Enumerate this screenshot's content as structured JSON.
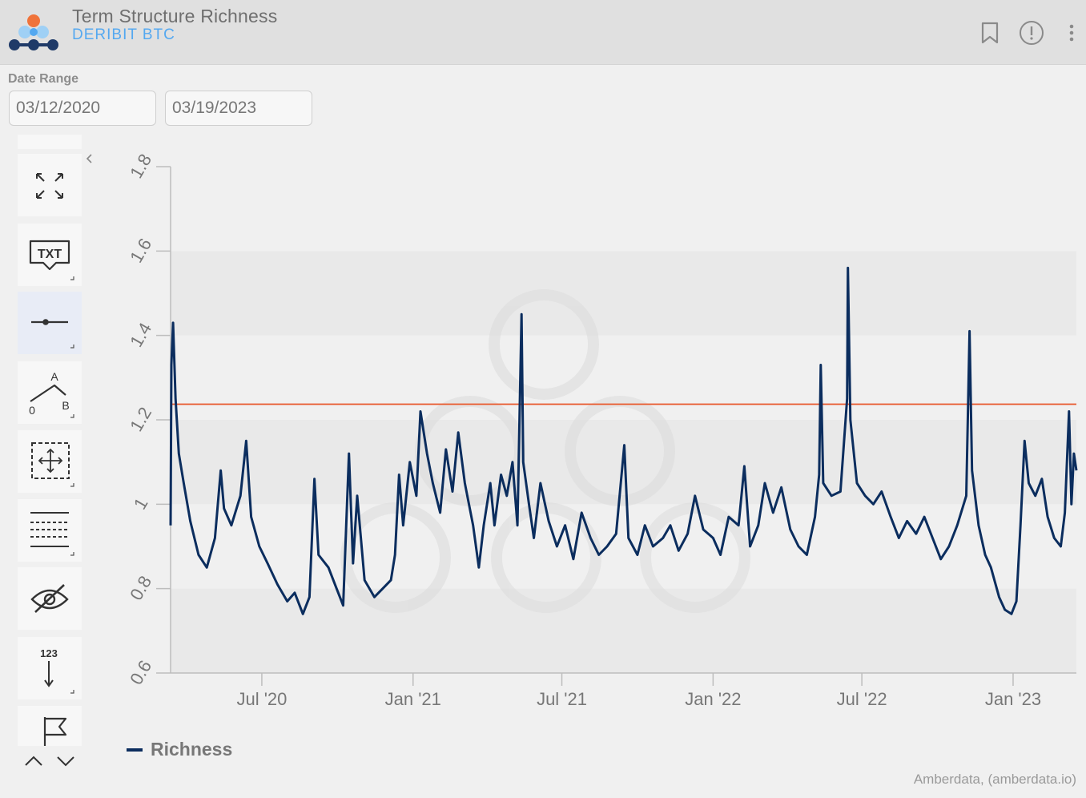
{
  "header": {
    "title": "Term Structure Richness",
    "subtitle": "DERIBIT BTC"
  },
  "date_range": {
    "label": "Date Range",
    "start": "03/12/2020",
    "end": "03/19/2023"
  },
  "toolbar": {
    "items": [
      {
        "name": "fullscreen-tool",
        "icon": "expand-arrows-icon"
      },
      {
        "name": "text-annotation-tool",
        "icon": "txt-callout-icon",
        "label": "TXT"
      },
      {
        "name": "horizontal-line-tool",
        "icon": "horizontal-line-icon",
        "active": true
      },
      {
        "name": "abc-pattern-tool",
        "icon": "zigzag-abc-icon",
        "labels": [
          "A",
          "B",
          "0"
        ]
      },
      {
        "name": "zoom-pan-tool",
        "icon": "dashed-move-icon"
      },
      {
        "name": "gridlines-tool",
        "icon": "dashed-lines-icon"
      },
      {
        "name": "toggle-visibility-tool",
        "icon": "eye-off-icon"
      },
      {
        "name": "measure-tool",
        "icon": "down-arrow-count-icon",
        "label": "123"
      },
      {
        "name": "flag-tool",
        "icon": "flag-icon"
      }
    ]
  },
  "legend": {
    "label": "Richness"
  },
  "credit": "Amberdata, (amberdata.io)",
  "colors": {
    "series": "#0b2d5e",
    "reference_line": "#e8572a",
    "accent_blue": "#54a8f0",
    "band": "#e9e9e9"
  },
  "chart_data": {
    "type": "line",
    "xlim": [
      "2020-03-12",
      "2023-03-19"
    ],
    "ylim": [
      0.6,
      1.8
    ],
    "y_ticks": [
      "0.6",
      "0.8",
      "1",
      "1.2",
      "1.4",
      "1.6",
      "1.8"
    ],
    "x_ticks": [
      {
        "label": "Jul '20",
        "date": "2020-07-01"
      },
      {
        "label": "Jan '21",
        "date": "2021-01-01"
      },
      {
        "label": "Jul '21",
        "date": "2021-07-01"
      },
      {
        "label": "Jan '22",
        "date": "2022-01-01"
      },
      {
        "label": "Jul '22",
        "date": "2022-07-01"
      },
      {
        "label": "Jan '23",
        "date": "2023-01-01"
      }
    ],
    "reference_line": {
      "y": 1.237
    },
    "series": [
      {
        "name": "Richness",
        "points": [
          [
            "2020-03-12",
            0.95
          ],
          [
            "2020-03-13",
            1.33
          ],
          [
            "2020-03-15",
            1.43
          ],
          [
            "2020-03-18",
            1.25
          ],
          [
            "2020-03-22",
            1.12
          ],
          [
            "2020-03-28",
            1.05
          ],
          [
            "2020-04-05",
            0.96
          ],
          [
            "2020-04-15",
            0.88
          ],
          [
            "2020-04-25",
            0.85
          ],
          [
            "2020-05-05",
            0.92
          ],
          [
            "2020-05-12",
            1.08
          ],
          [
            "2020-05-16",
            0.99
          ],
          [
            "2020-05-25",
            0.95
          ],
          [
            "2020-06-05",
            1.02
          ],
          [
            "2020-06-12",
            1.15
          ],
          [
            "2020-06-18",
            0.97
          ],
          [
            "2020-06-28",
            0.9
          ],
          [
            "2020-07-08",
            0.86
          ],
          [
            "2020-07-20",
            0.81
          ],
          [
            "2020-08-01",
            0.77
          ],
          [
            "2020-08-10",
            0.79
          ],
          [
            "2020-08-20",
            0.74
          ],
          [
            "2020-08-28",
            0.78
          ],
          [
            "2020-09-03",
            1.06
          ],
          [
            "2020-09-08",
            0.88
          ],
          [
            "2020-09-20",
            0.85
          ],
          [
            "2020-09-30",
            0.8
          ],
          [
            "2020-10-08",
            0.76
          ],
          [
            "2020-10-15",
            1.12
          ],
          [
            "2020-10-20",
            0.86
          ],
          [
            "2020-10-25",
            1.02
          ],
          [
            "2020-11-03",
            0.82
          ],
          [
            "2020-11-15",
            0.78
          ],
          [
            "2020-11-25",
            0.8
          ],
          [
            "2020-12-05",
            0.82
          ],
          [
            "2020-12-10",
            0.88
          ],
          [
            "2020-12-15",
            1.07
          ],
          [
            "2020-12-20",
            0.95
          ],
          [
            "2020-12-28",
            1.1
          ],
          [
            "2021-01-05",
            1.02
          ],
          [
            "2021-01-10",
            1.22
          ],
          [
            "2021-01-18",
            1.12
          ],
          [
            "2021-01-25",
            1.05
          ],
          [
            "2021-02-03",
            0.98
          ],
          [
            "2021-02-10",
            1.13
          ],
          [
            "2021-02-18",
            1.03
          ],
          [
            "2021-02-25",
            1.17
          ],
          [
            "2021-03-05",
            1.05
          ],
          [
            "2021-03-15",
            0.95
          ],
          [
            "2021-03-22",
            0.85
          ],
          [
            "2021-03-28",
            0.95
          ],
          [
            "2021-04-05",
            1.05
          ],
          [
            "2021-04-10",
            0.95
          ],
          [
            "2021-04-18",
            1.07
          ],
          [
            "2021-04-25",
            1.02
          ],
          [
            "2021-05-02",
            1.1
          ],
          [
            "2021-05-08",
            0.95
          ],
          [
            "2021-05-13",
            1.45
          ],
          [
            "2021-05-15",
            1.1
          ],
          [
            "2021-05-22",
            1.0
          ],
          [
            "2021-05-28",
            0.92
          ],
          [
            "2021-06-05",
            1.05
          ],
          [
            "2021-06-15",
            0.96
          ],
          [
            "2021-06-25",
            0.9
          ],
          [
            "2021-07-05",
            0.95
          ],
          [
            "2021-07-15",
            0.87
          ],
          [
            "2021-07-25",
            0.98
          ],
          [
            "2021-08-05",
            0.92
          ],
          [
            "2021-08-15",
            0.88
          ],
          [
            "2021-08-25",
            0.9
          ],
          [
            "2021-09-05",
            0.93
          ],
          [
            "2021-09-15",
            1.14
          ],
          [
            "2021-09-20",
            0.92
          ],
          [
            "2021-10-01",
            0.88
          ],
          [
            "2021-10-10",
            0.95
          ],
          [
            "2021-10-20",
            0.9
          ],
          [
            "2021-11-01",
            0.92
          ],
          [
            "2021-11-10",
            0.95
          ],
          [
            "2021-11-20",
            0.89
          ],
          [
            "2021-12-01",
            0.93
          ],
          [
            "2021-12-10",
            1.02
          ],
          [
            "2021-12-20",
            0.94
          ],
          [
            "2022-01-01",
            0.92
          ],
          [
            "2022-01-10",
            0.88
          ],
          [
            "2022-01-20",
            0.97
          ],
          [
            "2022-02-01",
            0.95
          ],
          [
            "2022-02-08",
            1.09
          ],
          [
            "2022-02-15",
            0.9
          ],
          [
            "2022-02-25",
            0.95
          ],
          [
            "2022-03-05",
            1.05
          ],
          [
            "2022-03-15",
            0.98
          ],
          [
            "2022-03-25",
            1.04
          ],
          [
            "2022-04-05",
            0.94
          ],
          [
            "2022-04-15",
            0.9
          ],
          [
            "2022-04-25",
            0.88
          ],
          [
            "2022-05-05",
            0.97
          ],
          [
            "2022-05-10",
            1.07
          ],
          [
            "2022-05-12",
            1.33
          ],
          [
            "2022-05-15",
            1.05
          ],
          [
            "2022-05-25",
            1.02
          ],
          [
            "2022-06-05",
            1.03
          ],
          [
            "2022-06-13",
            1.25
          ],
          [
            "2022-06-14",
            1.56
          ],
          [
            "2022-06-17",
            1.2
          ],
          [
            "2022-06-25",
            1.05
          ],
          [
            "2022-07-05",
            1.02
          ],
          [
            "2022-07-15",
            1.0
          ],
          [
            "2022-07-25",
            1.03
          ],
          [
            "2022-08-05",
            0.97
          ],
          [
            "2022-08-15",
            0.92
          ],
          [
            "2022-08-25",
            0.96
          ],
          [
            "2022-09-05",
            0.93
          ],
          [
            "2022-09-15",
            0.97
          ],
          [
            "2022-09-25",
            0.92
          ],
          [
            "2022-10-05",
            0.87
          ],
          [
            "2022-10-15",
            0.9
          ],
          [
            "2022-10-25",
            0.95
          ],
          [
            "2022-11-05",
            1.02
          ],
          [
            "2022-11-09",
            1.41
          ],
          [
            "2022-11-12",
            1.08
          ],
          [
            "2022-11-20",
            0.95
          ],
          [
            "2022-11-28",
            0.88
          ],
          [
            "2022-12-05",
            0.85
          ],
          [
            "2022-12-15",
            0.78
          ],
          [
            "2022-12-22",
            0.75
          ],
          [
            "2022-12-30",
            0.74
          ],
          [
            "2023-01-05",
            0.77
          ],
          [
            "2023-01-10",
            0.95
          ],
          [
            "2023-01-15",
            1.15
          ],
          [
            "2023-01-20",
            1.05
          ],
          [
            "2023-01-28",
            1.02
          ],
          [
            "2023-02-05",
            1.06
          ],
          [
            "2023-02-12",
            0.97
          ],
          [
            "2023-02-20",
            0.92
          ],
          [
            "2023-02-28",
            0.9
          ],
          [
            "2023-03-05",
            0.98
          ],
          [
            "2023-03-10",
            1.22
          ],
          [
            "2023-03-13",
            1.0
          ],
          [
            "2023-03-16",
            1.12
          ],
          [
            "2023-03-19",
            1.08
          ]
        ]
      }
    ]
  }
}
